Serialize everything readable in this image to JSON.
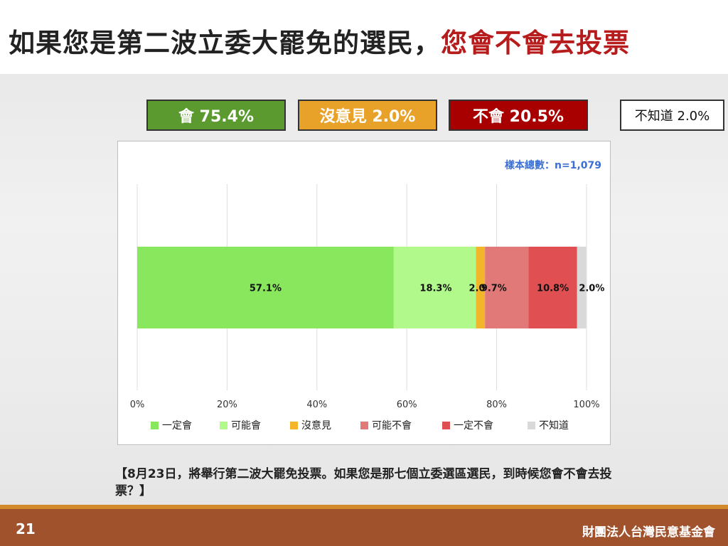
{
  "title": {
    "prefix": "如果您是第二波立委大罷免的選民，",
    "highlight": "您會不會去投票"
  },
  "summary": [
    {
      "label": "會 75.4%",
      "color": "#5a9a2e"
    },
    {
      "label": "沒意見 2.0%",
      "color": "#e8a22a"
    },
    {
      "label": "不會 20.5%",
      "color": "#a80000"
    },
    {
      "label": "不知道 2.0%",
      "color": "#ffffff"
    }
  ],
  "chart_data": {
    "type": "bar",
    "orientation": "horizontal",
    "stacked": true,
    "sample_note": "樣本總數：n=1,079",
    "xlim": [
      0,
      100
    ],
    "x_ticks": [
      "0%",
      "20%",
      "40%",
      "60%",
      "80%",
      "100%"
    ],
    "grid": true,
    "legend_position": "bottom",
    "series": [
      {
        "name": "一定會",
        "value": 57.1,
        "label": "57.1%",
        "color": "#88e75d"
      },
      {
        "name": "可能會",
        "value": 18.3,
        "label": "18.3%",
        "color": "#b2f98b"
      },
      {
        "name": "沒意見",
        "value": 2.0,
        "label": "2.0%",
        "color": "#f3b62a"
      },
      {
        "name": "可能不會",
        "value": 9.7,
        "label": "9.7%",
        "color": "#e27979"
      },
      {
        "name": "一定不會",
        "value": 10.8,
        "label": "10.8%",
        "color": "#e04f52"
      },
      {
        "name": "不知道",
        "value": 2.0,
        "label": "2.0%",
        "color": "#d9d9d9"
      }
    ]
  },
  "question": "【8月23日，將舉行第二波大罷免投票。如果您是那七個立委選區選民，到時候您會不會去投票？】",
  "footer": {
    "page_number": "21",
    "organization": "財團法人台灣民意基金會"
  }
}
